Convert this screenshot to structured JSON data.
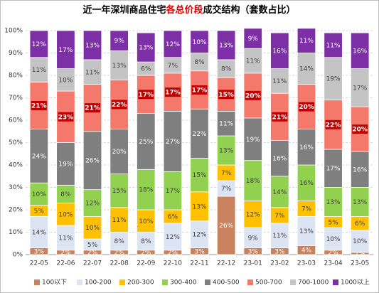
{
  "chart_data": {
    "type": "stacked_bar_100",
    "title_parts": [
      "近一年深圳商品住宅",
      "各总价段",
      "成交结构（套数占比）"
    ],
    "title_highlight_color": "#e00000",
    "categories": [
      "22-05",
      "22-06",
      "22-07",
      "22-08",
      "22-09",
      "22-10",
      "22-11",
      "22-12",
      "23-01",
      "23-02",
      "23-03",
      "23-04",
      "23-05"
    ],
    "ylim": [
      0,
      100
    ],
    "yticks": [
      {
        "value": 0,
        "label": "0%"
      },
      {
        "value": 10,
        "label": "10%"
      },
      {
        "value": 20,
        "label": "20%"
      },
      {
        "value": 30,
        "label": "30%"
      },
      {
        "value": 40,
        "label": "40%"
      },
      {
        "value": 50,
        "label": "50%"
      },
      {
        "value": 60,
        "label": "60%"
      },
      {
        "value": 70,
        "label": "70%"
      },
      {
        "value": 80,
        "label": "80%"
      },
      {
        "value": 90,
        "label": "90%"
      },
      {
        "value": 100,
        "label": "100%"
      }
    ],
    "grid": true,
    "legend": "bottom",
    "series": [
      {
        "name": "100以下",
        "color": "#c8825e",
        "values": [
          3,
          2,
          2,
          2,
          2,
          2,
          3,
          26,
          3,
          3,
          4,
          2,
          1
        ],
        "value_labels": [
          "3%",
          "2%",
          "2%",
          "2%",
          "2%",
          "2%",
          "3%",
          "26%",
          "3%",
          "3%",
          "4%",
          "2%",
          "1%"
        ]
      },
      {
        "name": "100-200",
        "color": "#dce3f2",
        "values": [
          14,
          11,
          5,
          8,
          8,
          12,
          12,
          7,
          9,
          11,
          13,
          10,
          10
        ],
        "value_labels": [
          "14%",
          "11%",
          "5%",
          "8%",
          "8%",
          "12%",
          "12%",
          "7%",
          "9%",
          "11%",
          "13%",
          "10%",
          "10%"
        ]
      },
      {
        "name": "200-300",
        "color": "#ffc000",
        "values": [
          5,
          10,
          10,
          11,
          10,
          6,
          13,
          7,
          12,
          7,
          7,
          5,
          6
        ],
        "value_labels": [
          "5%",
          "10%",
          "10%",
          "11%",
          "10%",
          "6%",
          "13%",
          "7%",
          "12%",
          "7%",
          "7%",
          "5%",
          "6%"
        ]
      },
      {
        "name": "300-400",
        "color": "#92d050",
        "values": [
          10,
          8,
          12,
          15,
          18,
          17,
          15,
          13,
          18,
          14,
          16,
          13,
          13
        ],
        "value_labels": [
          "10%",
          "8%",
          "12%",
          "15%",
          "18%",
          "17%",
          "15%",
          "13%",
          "18%",
          "14%",
          "16%",
          "13%",
          "13%"
        ]
      },
      {
        "name": "400-500",
        "color": "#7f7f7f",
        "values": [
          24,
          19,
          26,
          20,
          25,
          27,
          22,
          11,
          19,
          16,
          16,
          17,
          16
        ],
        "value_labels": [
          "24%",
          "19%",
          "26%",
          "20%",
          "25%",
          "27%",
          "22%",
          "11%",
          "19%",
          "16%",
          "16%",
          "17%",
          "16%"
        ]
      },
      {
        "name": "500-700",
        "color": "#f4786c",
        "boxed": true,
        "values": [
          21,
          23,
          21,
          22,
          17,
          17,
          17,
          15,
          20,
          21,
          20,
          22,
          20
        ],
        "value_labels": [
          "21%",
          "23%",
          "21%",
          "22%",
          "17%",
          "17%",
          "17%",
          "15%",
          "20%",
          "21%",
          "20%",
          "22%",
          "20%"
        ]
      },
      {
        "name": "700-1000",
        "color": "#c4c4c4",
        "values": [
          11,
          10,
          11,
          13,
          6,
          7,
          8,
          8,
          11,
          11,
          14,
          19,
          17
        ],
        "value_labels": [
          "11%",
          "10%",
          "11%",
          "13%",
          "6%",
          "7%",
          "8%",
          "8%",
          "11%",
          "11%",
          "14%",
          "19%",
          "17%"
        ]
      },
      {
        "name": "1000以上",
        "color": "#7d2fa6",
        "values": [
          12,
          17,
          13,
          9,
          13,
          12,
          10,
          13,
          9,
          16,
          11,
          11,
          16
        ],
        "value_labels": [
          "12%",
          "17%",
          "13%",
          "9%",
          "13%",
          "12%",
          "10%",
          "13%",
          "9%",
          "16%",
          "11%",
          "11%",
          "16%"
        ]
      }
    ]
  }
}
